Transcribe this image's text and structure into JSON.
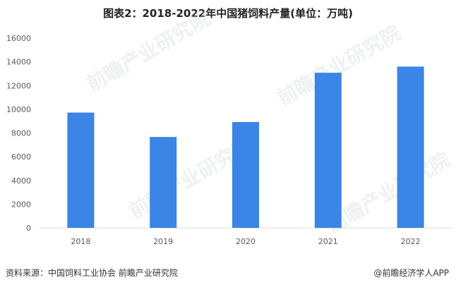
{
  "chart_data": {
    "type": "bar",
    "title": "图表2：2018-2022年中国猪饲料产量(单位：万吨)",
    "categories": [
      "2018",
      "2019",
      "2020",
      "2021",
      "2022"
    ],
    "values": [
      9720,
      7663,
      8923,
      13077,
      13597
    ],
    "ylim": [
      0,
      16000
    ],
    "yticks": [
      0,
      2000,
      4000,
      6000,
      8000,
      10000,
      12000,
      14000,
      16000
    ],
    "bar_color": "#3a85e6",
    "grid": false,
    "legend": "none"
  },
  "footer": {
    "source": "资料来源：中国饲料工业协会 前瞻产业研究院",
    "brand": "@前瞻经济学人APP"
  },
  "watermark": "前瞻产业研究院"
}
